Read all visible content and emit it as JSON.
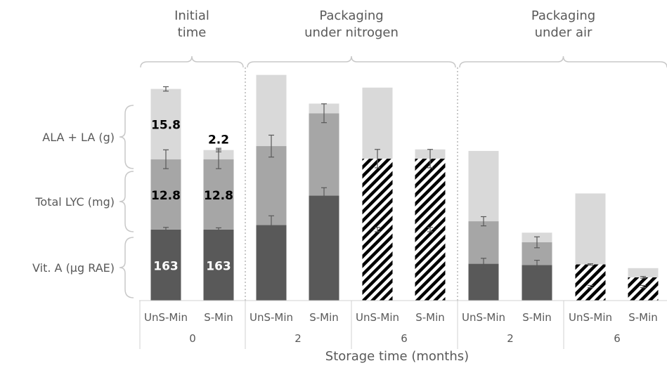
{
  "chart_data": {
    "type": "bar",
    "stacked": true,
    "xlabel": "Storage time (months)",
    "ylim": [
      0,
      1
    ],
    "grid": false,
    "groups": [
      {
        "name": "Initial time",
        "name_lines": [
          "Initial",
          "time"
        ]
      },
      {
        "name": "Packaging under nitrogen",
        "name_lines": [
          "Packaging",
          "under nitrogen"
        ]
      },
      {
        "name": "Packaging under air",
        "name_lines": [
          "Packaging",
          "under air"
        ]
      }
    ],
    "row_labels": [
      {
        "label": "ALA + LA (g)"
      },
      {
        "label": "Total LYC (mg)"
      },
      {
        "label": "Vit. A (µg RAE)"
      }
    ],
    "time_labels": [
      "0",
      "2",
      "6",
      "2",
      "6"
    ],
    "categories": [
      "UnS-Min",
      "S-Min",
      "UnS-Min",
      "S-Min",
      "UnS-Min",
      "S-Min",
      "UnS-Min",
      "S-Min",
      "UnS-Min",
      "S-Min"
    ],
    "series": [
      {
        "key": "vita",
        "color": "#595959",
        "values": [
          0.324,
          0.324,
          0.345,
          0.479,
          0.324,
          0.324,
          0.168,
          0.162,
          0.064,
          0.064
        ]
      },
      {
        "key": "lyc",
        "color": "#a6a6a6",
        "values": [
          0.321,
          0.321,
          0.36,
          0.376,
          0.324,
          0.324,
          0.194,
          0.104,
          0.101,
          0.042
        ]
      },
      {
        "key": "ala",
        "color": "#d9d9d9",
        "values": [
          0.321,
          0.042,
          0.325,
          0.044,
          0.324,
          0.042,
          0.321,
          0.044,
          0.324,
          0.042
        ]
      }
    ],
    "hatched": [
      false,
      false,
      false,
      false,
      true,
      true,
      false,
      false,
      true,
      true
    ],
    "error_bars": [
      [
        0.01,
        0.008,
        0.042,
        0.036,
        0.01,
        0.01,
        0.025,
        0.022,
        0.005,
        0.005
      ],
      [
        0.043,
        0.043,
        0.05,
        0.043,
        0.042,
        0.042,
        0.021,
        0.025,
        0.003,
        0.004
      ],
      [
        0.01,
        0.008,
        0,
        0,
        0,
        0,
        0,
        0,
        0,
        0
      ]
    ],
    "data_labels": [
      {
        "bar": 0,
        "series": 2,
        "text": "15.8",
        "color": "#000000"
      },
      {
        "bar": 1,
        "series": 2,
        "text": "2.2",
        "color": "#000000",
        "above": true
      },
      {
        "bar": 0,
        "series": 1,
        "text": "12.8",
        "color": "#000000"
      },
      {
        "bar": 1,
        "series": 1,
        "text": "12.8",
        "color": "#000000"
      },
      {
        "bar": 0,
        "series": 0,
        "text": "163",
        "color": "#ffffff"
      },
      {
        "bar": 1,
        "series": 0,
        "text": "163",
        "color": "#ffffff"
      }
    ]
  }
}
